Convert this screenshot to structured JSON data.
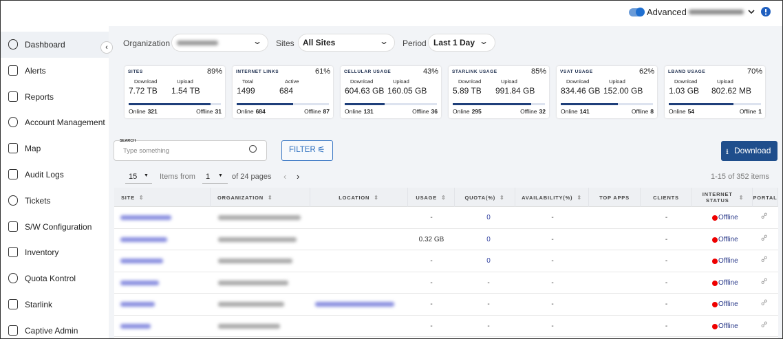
{
  "top_bar": {
    "mode_toggle": "Advanced"
  },
  "sidebar": {
    "items": [
      "Dashboard",
      "Alerts",
      "Reports",
      "Account Management",
      "Map",
      "Audit Logs",
      "Tickets",
      "S/W Configuration",
      "Inventory",
      "Quota Kontrol",
      "Starlink",
      "Captive Admin"
    ]
  },
  "filters": {
    "organization_label": "Organization",
    "sites_label": "Sites",
    "sites_value": "All Sites",
    "period_label": "Period",
    "period_value": "Last 1 Day"
  },
  "cards": [
    {
      "title": "SITES",
      "percent": {
        "value": 89,
        "label": "89%"
      },
      "metric_labels": [
        "Download",
        "Upload"
      ],
      "metric_values": [
        "7.72 TB",
        "1.54 TB"
      ],
      "online_label": "Online",
      "online": 321,
      "offline_label": "Offline",
      "offline": 31
    },
    {
      "title": "INTERNET LINKS",
      "percent": {
        "value": 61,
        "label": "61%"
      },
      "metric_labels": [
        "Total",
        "Active"
      ],
      "metric_values": [
        1499,
        684
      ],
      "online_label": "Online",
      "online": 684,
      "offline_label": "Offline",
      "offline": 87
    },
    {
      "title": "CELLULAR USAGE",
      "percent": {
        "value": 43,
        "label": "43%"
      },
      "metric_labels": [
        "Download",
        "Upload"
      ],
      "metric_values": [
        "604.63 GB",
        "160.05 GB"
      ],
      "online_label": "Online",
      "online": 131,
      "offline_label": "Offline",
      "offline": 36
    },
    {
      "title": "STARLINK USAGE",
      "percent": {
        "value": 85,
        "label": "85%"
      },
      "metric_labels": [
        "Download",
        "Upload"
      ],
      "metric_values": [
        "5.89 TB",
        "991.84 GB"
      ],
      "online_label": "Online",
      "online": 295,
      "offline_label": "Offline",
      "offline": 32
    },
    {
      "title": "VSAT USAGE",
      "percent": {
        "value": 62,
        "label": "62%"
      },
      "metric_labels": [
        "Download",
        "Upload"
      ],
      "metric_values": [
        "834.46 GB",
        "152.00 GB"
      ],
      "online_label": "Online",
      "online": 141,
      "offline_label": "Offline",
      "offline": 8
    },
    {
      "title": "LBAND USAGE",
      "percent": {
        "value": 70,
        "label": "70%"
      },
      "metric_labels": [
        "Download",
        "Upload"
      ],
      "metric_values": [
        "1.03 GB",
        "802.62 MB"
      ],
      "online_label": "Online",
      "online": 54,
      "offline_label": "Offline",
      "offline": 1
    }
  ],
  "toolbar": {
    "search_label": "SEARCH",
    "search_placeholder": "Type something",
    "filter_button": "FILTER",
    "download_button": "Download"
  },
  "pagination": {
    "page_size": 15,
    "items_from_label": "Items from",
    "page": 1,
    "pages_text": "of 24 pages",
    "summary": "1-15 of 352 items"
  },
  "table": {
    "columns": [
      "SITE",
      "ORGANIZATION",
      "LOCATION",
      "USAGE",
      "QUOTA(%)",
      "AVAILABILITY(%)",
      "TOP APPS",
      "CLIENTS",
      "INTERNET STATUS",
      "PORTAL"
    ],
    "rows": [
      {
        "usage": "-",
        "quota": 0,
        "availability": "-",
        "clients": "-",
        "status": "Offline"
      },
      {
        "usage": "0.32 GB",
        "quota": 0,
        "availability": "-",
        "clients": "-",
        "status": "Offline"
      },
      {
        "usage": "-",
        "quota": 0,
        "availability": "-",
        "clients": "-",
        "status": "Offline"
      },
      {
        "usage": "-",
        "quota": "-",
        "availability": "-",
        "clients": "-",
        "status": "Offline"
      },
      {
        "usage": "-",
        "quota": "-",
        "availability": "-",
        "clients": "-",
        "status": "Offline"
      },
      {
        "usage": "-",
        "quota": "-",
        "availability": "-",
        "clients": "-",
        "status": "Offline"
      }
    ]
  }
}
